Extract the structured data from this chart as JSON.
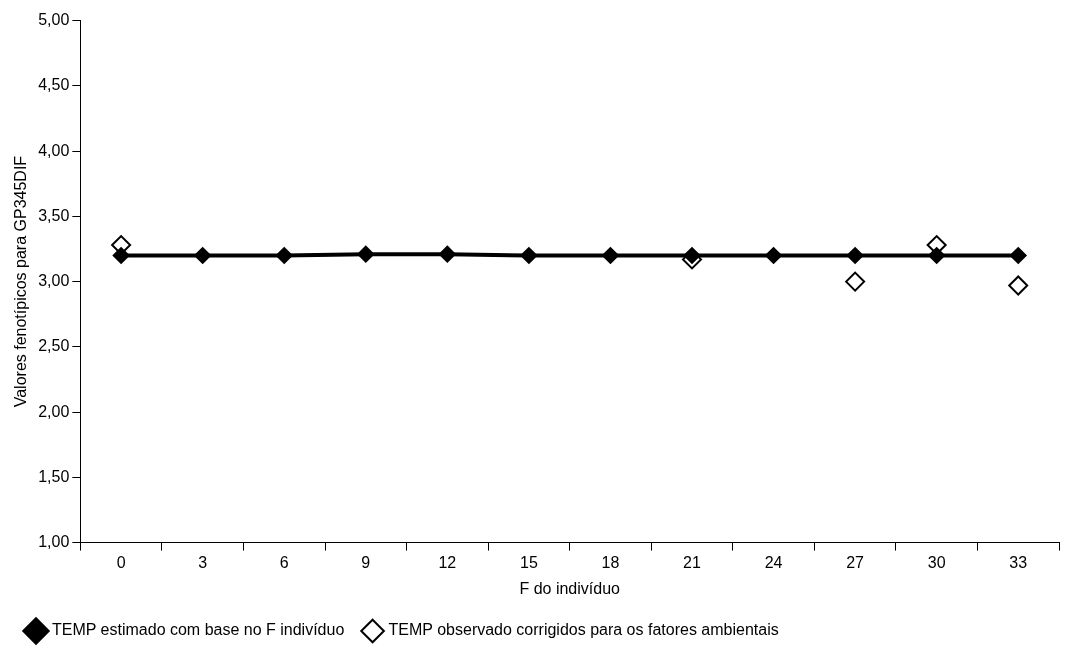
{
  "chart_data": {
    "type": "line",
    "xlabel": "F do indivíduo",
    "ylabel": "Valores fenotípicos para GP345DIF",
    "categories": [
      "0",
      "3",
      "6",
      "9",
      "12",
      "15",
      "18",
      "21",
      "24",
      "27",
      "30",
      "33"
    ],
    "ylim": [
      1,
      5
    ],
    "yticks": [
      {
        "value": 1,
        "label": "1,00"
      },
      {
        "value": 1.5,
        "label": "1,50"
      },
      {
        "value": 2,
        "label": "2,00"
      },
      {
        "value": 2.5,
        "label": "2,50"
      },
      {
        "value": 3,
        "label": "3,00"
      },
      {
        "value": 3.5,
        "label": "3,50"
      },
      {
        "value": 4,
        "label": "4,00"
      },
      {
        "value": 4.5,
        "label": "4,50"
      },
      {
        "value": 5,
        "label": "5,00"
      }
    ],
    "grid": false,
    "legend": "bottom",
    "series": [
      {
        "name": "TEMP estimado com base no F indivíduo",
        "color": "#000000",
        "marker": "diamond",
        "line_style": "solid",
        "values": [
          3.2,
          3.2,
          3.2,
          3.21,
          3.21,
          3.2,
          3.2,
          3.2,
          3.2,
          3.2,
          3.2,
          3.2
        ]
      },
      {
        "name": "TEMP observado corrigidos para os fatores ambientais",
        "type": "scatter",
        "color": "#000000",
        "marker": "diamond",
        "values": [
          3.28,
          null,
          null,
          null,
          null,
          null,
          null,
          3.17,
          null,
          3.0,
          3.28,
          2.97
        ]
      }
    ]
  }
}
